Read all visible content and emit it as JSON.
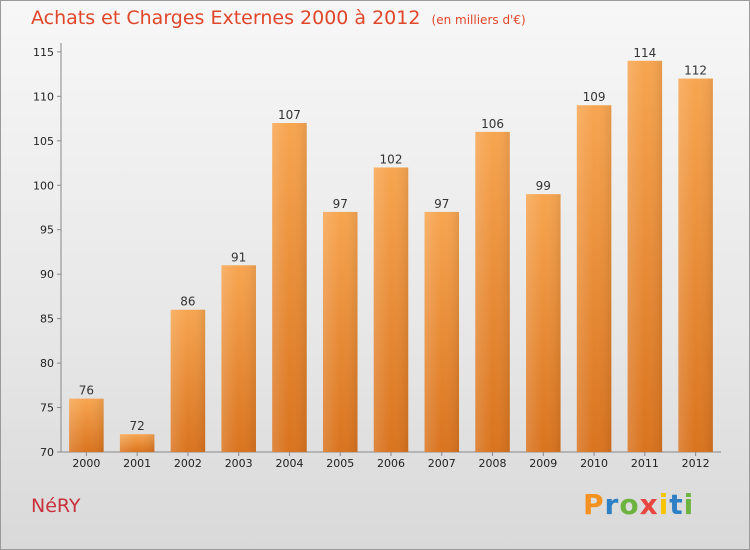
{
  "chart_data": {
    "type": "bar",
    "title": "Achats et Charges Externes 2000 à 2012",
    "subtitle": "(en milliers d'€)",
    "categories": [
      "2000",
      "2001",
      "2002",
      "2003",
      "2004",
      "2005",
      "2006",
      "2007",
      "2008",
      "2009",
      "2010",
      "2011",
      "2012"
    ],
    "values": [
      76,
      72,
      86,
      91,
      107,
      97,
      102,
      97,
      106,
      99,
      109,
      114,
      112
    ],
    "ylim": [
      70,
      116
    ],
    "yticks": [
      70,
      75,
      80,
      85,
      90,
      95,
      100,
      105,
      110,
      115
    ],
    "grid": false,
    "bar_color_top": "#f7a550",
    "bar_color_bottom": "#d9731e"
  },
  "footer": {
    "commune": "NéRY",
    "logo_text": "Proxiti",
    "logo_colors": [
      "#f39221",
      "#2e7fc4",
      "#6db33f",
      "#e8473f",
      "#f7c400",
      "#2e7fc4",
      "#6db33f"
    ]
  }
}
